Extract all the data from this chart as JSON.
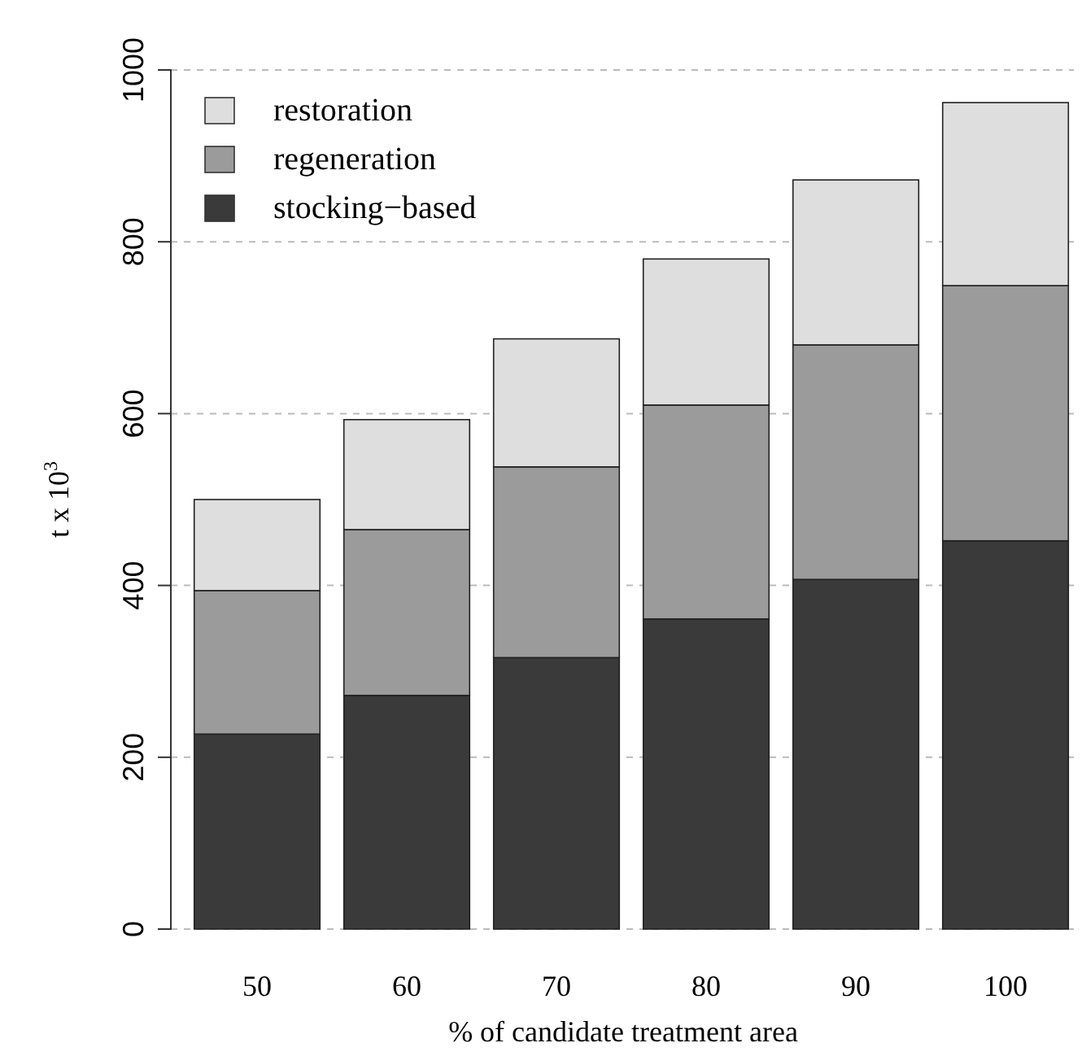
{
  "chart_data": {
    "type": "bar",
    "stacked": true,
    "xlabel": "% of candidate treatment area",
    "ylabel": "t x 10$^{3}$",
    "categories": [
      "50",
      "60",
      "70",
      "80",
      "90",
      "100"
    ],
    "series": [
      {
        "name": "stocking−based",
        "color": "#3a3a3a",
        "values": [
          227,
          272,
          316,
          361,
          407,
          452
        ]
      },
      {
        "name": "regeneration",
        "color": "#9b9b9b",
        "values": [
          167,
          193,
          222,
          249,
          273,
          297
        ]
      },
      {
        "name": "restoration",
        "color": "#dedede",
        "values": [
          106,
          128,
          149,
          170,
          192,
          213
        ]
      }
    ],
    "ylim": [
      0,
      1000
    ],
    "yticks": [
      0,
      200,
      400,
      600,
      800,
      1000
    ],
    "grid": "y",
    "legend": "top left"
  }
}
